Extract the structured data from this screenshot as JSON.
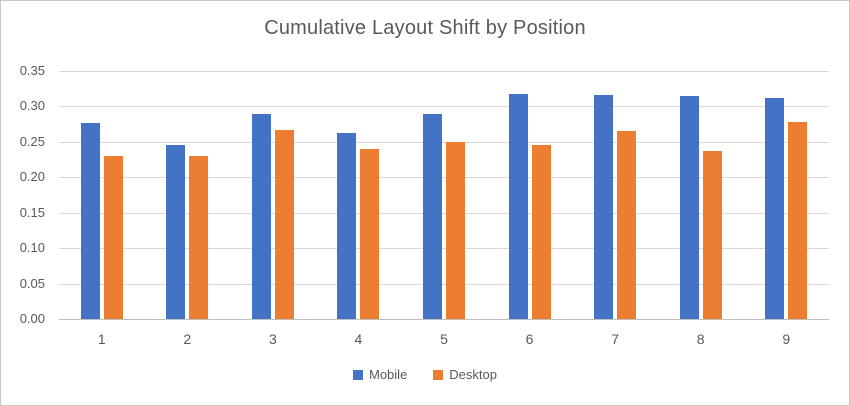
{
  "chart_data": {
    "type": "bar",
    "title": "Cumulative Layout Shift by Position",
    "categories": [
      "1",
      "2",
      "3",
      "4",
      "5",
      "6",
      "7",
      "8",
      "9"
    ],
    "series": [
      {
        "name": "Mobile",
        "color": "#4472C4",
        "values": [
          0.276,
          0.246,
          0.289,
          0.263,
          0.289,
          0.317,
          0.316,
          0.315,
          0.312
        ]
      },
      {
        "name": "Desktop",
        "color": "#ED7D31",
        "values": [
          0.23,
          0.23,
          0.267,
          0.24,
          0.25,
          0.246,
          0.265,
          0.237,
          0.278
        ]
      }
    ],
    "xlabel": "",
    "ylabel": "",
    "ylim": [
      0,
      0.35
    ],
    "ytick_step": 0.05,
    "yticks": [
      "0.00",
      "0.05",
      "0.10",
      "0.15",
      "0.20",
      "0.25",
      "0.30",
      "0.35"
    ],
    "grid": true,
    "legend_position": "bottom"
  },
  "colors": {
    "title_text": "#595959",
    "axis_text": "#595959",
    "gridline": "#D9D9D9",
    "axis_line": "#BFBFBF",
    "background": "#FFFFFF",
    "frame_border": "#C9C9C9"
  }
}
